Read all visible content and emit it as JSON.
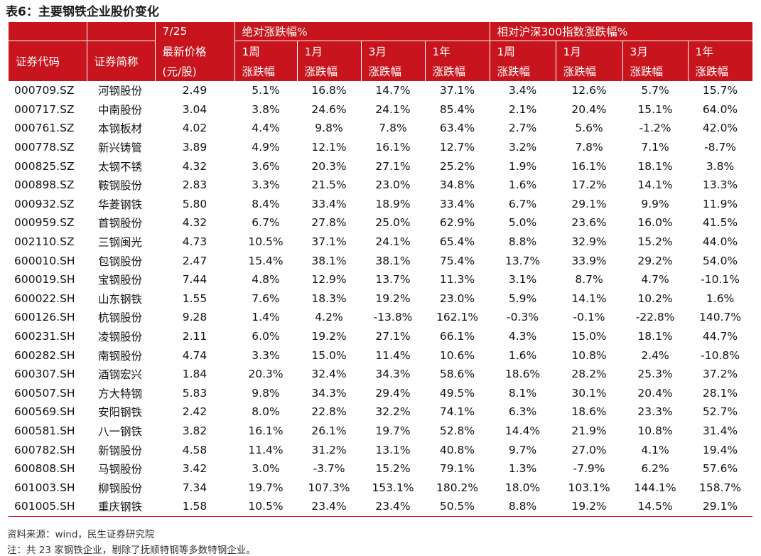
{
  "title": "表6：主要钢铁企业股价变化",
  "header": {
    "date": "7/25",
    "abs_group": "绝对涨跌幅%",
    "rel_group": "相对沪深300指数涨跌幅%",
    "code_label": "证券代码",
    "name_label": "证券简称",
    "price_label_1": "最新价格",
    "price_label_2": "(元/股)",
    "periods": [
      "1周",
      "1月",
      "3月",
      "1年",
      "1周",
      "1月",
      "3月",
      "1年"
    ],
    "change_label": "涨跌幅"
  },
  "rows": [
    [
      "000709.SZ",
      "河钢股份",
      "2.49",
      "5.1%",
      "16.8%",
      "14.7%",
      "37.1%",
      "3.4%",
      "12.6%",
      "5.7%",
      "15.7%"
    ],
    [
      "000717.SZ",
      "中南股份",
      "3.04",
      "3.8%",
      "24.6%",
      "24.1%",
      "85.4%",
      "2.1%",
      "20.4%",
      "15.1%",
      "64.0%"
    ],
    [
      "000761.SZ",
      "本钢板材",
      "4.02",
      "4.4%",
      "9.8%",
      "7.8%",
      "63.4%",
      "2.7%",
      "5.6%",
      "-1.2%",
      "42.0%"
    ],
    [
      "000778.SZ",
      "新兴铸管",
      "3.89",
      "4.9%",
      "12.1%",
      "16.1%",
      "12.7%",
      "3.2%",
      "7.8%",
      "7.1%",
      "-8.7%"
    ],
    [
      "000825.SZ",
      "太钢不锈",
      "4.32",
      "3.6%",
      "20.3%",
      "27.1%",
      "25.2%",
      "1.9%",
      "16.1%",
      "18.1%",
      "3.8%"
    ],
    [
      "000898.SZ",
      "鞍钢股份",
      "2.83",
      "3.3%",
      "21.5%",
      "23.0%",
      "34.8%",
      "1.6%",
      "17.2%",
      "14.1%",
      "13.3%"
    ],
    [
      "000932.SZ",
      "华菱钢铁",
      "5.80",
      "8.4%",
      "33.4%",
      "18.9%",
      "33.4%",
      "6.7%",
      "29.1%",
      "9.9%",
      "11.9%"
    ],
    [
      "000959.SZ",
      "首钢股份",
      "4.32",
      "6.7%",
      "27.8%",
      "25.0%",
      "62.9%",
      "5.0%",
      "23.6%",
      "16.0%",
      "41.5%"
    ],
    [
      "002110.SZ",
      "三钢闽光",
      "4.73",
      "10.5%",
      "37.1%",
      "24.1%",
      "65.4%",
      "8.8%",
      "32.9%",
      "15.2%",
      "44.0%"
    ],
    [
      "600010.SH",
      "包钢股份",
      "2.47",
      "15.4%",
      "38.1%",
      "38.1%",
      "75.4%",
      "13.7%",
      "33.9%",
      "29.2%",
      "54.0%"
    ],
    [
      "600019.SH",
      "宝钢股份",
      "7.44",
      "4.8%",
      "12.9%",
      "13.7%",
      "11.3%",
      "3.1%",
      "8.7%",
      "4.7%",
      "-10.1%"
    ],
    [
      "600022.SH",
      "山东钢铁",
      "1.55",
      "7.6%",
      "18.3%",
      "19.2%",
      "23.0%",
      "5.9%",
      "14.1%",
      "10.2%",
      "1.6%"
    ],
    [
      "600126.SH",
      "杭钢股份",
      "9.28",
      "1.4%",
      "4.2%",
      "-13.8%",
      "162.1%",
      "-0.3%",
      "-0.1%",
      "-22.8%",
      "140.7%"
    ],
    [
      "600231.SH",
      "凌钢股份",
      "2.11",
      "6.0%",
      "19.2%",
      "27.1%",
      "66.1%",
      "4.3%",
      "15.0%",
      "18.1%",
      "44.7%"
    ],
    [
      "600282.SH",
      "南钢股份",
      "4.74",
      "3.3%",
      "15.0%",
      "11.4%",
      "10.6%",
      "1.6%",
      "10.8%",
      "2.4%",
      "-10.8%"
    ],
    [
      "600307.SH",
      "酒钢宏兴",
      "1.84",
      "20.3%",
      "32.4%",
      "34.3%",
      "58.6%",
      "18.6%",
      "28.2%",
      "25.3%",
      "37.2%"
    ],
    [
      "600507.SH",
      "方大特钢",
      "5.83",
      "9.8%",
      "34.3%",
      "29.4%",
      "49.5%",
      "8.1%",
      "30.1%",
      "20.4%",
      "28.1%"
    ],
    [
      "600569.SH",
      "安阳钢铁",
      "2.42",
      "8.0%",
      "22.8%",
      "32.2%",
      "74.1%",
      "6.3%",
      "18.6%",
      "23.3%",
      "52.7%"
    ],
    [
      "600581.SH",
      "八一钢铁",
      "3.82",
      "16.1%",
      "26.1%",
      "19.7%",
      "52.8%",
      "14.4%",
      "21.9%",
      "10.8%",
      "31.4%"
    ],
    [
      "600782.SH",
      "新钢股份",
      "4.58",
      "11.4%",
      "31.2%",
      "13.1%",
      "40.8%",
      "9.7%",
      "27.0%",
      "4.1%",
      "19.4%"
    ],
    [
      "600808.SH",
      "马钢股份",
      "3.42",
      "3.0%",
      "-3.7%",
      "15.2%",
      "79.1%",
      "1.3%",
      "-7.9%",
      "6.2%",
      "57.6%"
    ],
    [
      "601003.SH",
      "柳钢股份",
      "7.34",
      "19.7%",
      "107.3%",
      "153.1%",
      "180.2%",
      "18.0%",
      "103.1%",
      "144.1%",
      "158.7%"
    ],
    [
      "601005.SH",
      "重庆钢铁",
      "1.58",
      "10.5%",
      "23.4%",
      "23.4%",
      "50.5%",
      "8.8%",
      "19.2%",
      "14.5%",
      "29.1%"
    ]
  ],
  "notes": {
    "source": "资料来源：wind，民生证券研究院",
    "remark": "注：共 23 家钢铁企业，剔除了抚顺特钢等多数特钢企业。"
  },
  "colors": {
    "header_bg": "#c8141c",
    "header_text": "#ffffff"
  }
}
